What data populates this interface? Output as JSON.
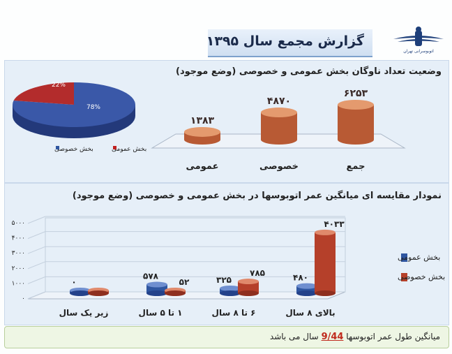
{
  "header": {
    "title": "گزارش مجمع سال ۱۳۹۵",
    "logo_caption": "اتوبوسرانی تهران"
  },
  "top_panel": {
    "title": "وضعیت تعداد ناوگان بخش عمومی و خصوصی (وضع موجود)"
  },
  "bottom_panel": {
    "title": "نمودار مقایسه ای میانگین عمر اتوبوسها در بخش عمومی و خصوصی (وضع موجود)"
  },
  "footer": {
    "prefix": "میانگین طول عمر اتوبوسها",
    "value": "9/44",
    "suffix": "سال می باشد"
  },
  "colors": {
    "public_blue": "#2f4f9e",
    "private_red": "#b33a2a",
    "copper": "#c0603a"
  },
  "chart_data": [
    {
      "type": "pie",
      "title": "",
      "slices": [
        {
          "name": "بخش خصوصی",
          "value": 78,
          "label": "78%",
          "color": "#3a58a8"
        },
        {
          "name": "بخش عمومی",
          "value": 22,
          "label": "22%",
          "color": "#b32c2c"
        }
      ],
      "legend_position": "bottom"
    },
    {
      "type": "bar",
      "title": "وضعیت تعداد ناوگان بخش عمومی و خصوصی (وضع موجود)",
      "categories": [
        "عمومی",
        "خصوصی",
        "جمع"
      ],
      "values": [
        1383,
        4870,
        6253
      ],
      "value_labels": [
        "۱۳۸۳",
        "۴۸۷۰",
        "۶۲۵۳"
      ]
    },
    {
      "type": "bar",
      "title": "نمودار مقایسه ای میانگین عمر اتوبوسها در بخش عمومی و خصوصی (وضع موجود)",
      "categories": [
        "زیر یک سال",
        "۱ تا ۵ سال",
        "۶ تا ۸ سال",
        "بالای ۸ سال"
      ],
      "series": [
        {
          "name": "بخش عمومی",
          "values": [
            0,
            578,
            325,
            480
          ],
          "labels": [
            "۰",
            "۵۷۸",
            "۳۲۵",
            "۴۸۰"
          ],
          "color": "#2f56a0"
        },
        {
          "name": "بخش خصوصی",
          "values": [
            0,
            52,
            785,
            4033
          ],
          "labels": [
            "",
            "۵۲",
            "۷۸۵",
            "۴۰۳۳"
          ],
          "color": "#b5402a"
        }
      ],
      "y_ticks": [
        "۰",
        "۱۰۰۰",
        "۲۰۰۰",
        "۳۰۰۰",
        "۴۰۰۰",
        "۵۰۰۰"
      ],
      "ylim": [
        0,
        5000
      ],
      "legend_position": "right",
      "grid": true
    }
  ]
}
